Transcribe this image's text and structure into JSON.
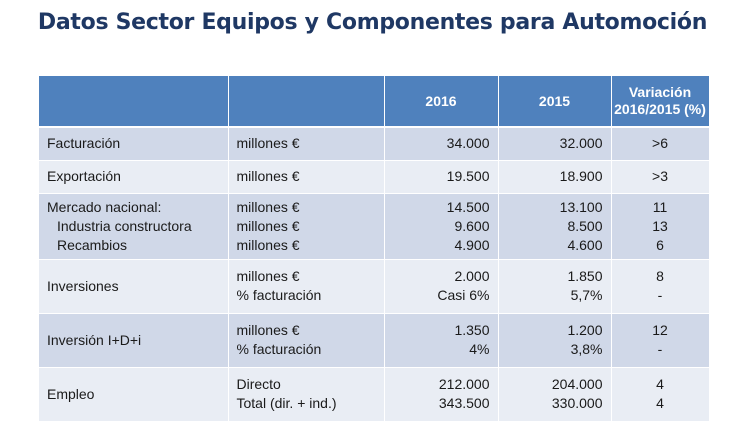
{
  "title": "Datos Sector Equipos y Componentes para Automoción",
  "header": {
    "col_label": "",
    "col_unit": "",
    "col_2016": "2016",
    "col_2015": "2015",
    "col_var_line1": "Variación",
    "col_var_line2": "2016/2015 (%)"
  },
  "rows": [
    {
      "label": [
        "Facturación"
      ],
      "unit": [
        "millones €"
      ],
      "y2016": [
        "34.000"
      ],
      "y2015": [
        "32.000"
      ],
      "var": [
        ">6"
      ]
    },
    {
      "label": [
        "Exportación"
      ],
      "unit": [
        "millones €"
      ],
      "y2016": [
        "19.500"
      ],
      "y2015": [
        "18.900"
      ],
      "var": [
        ">3"
      ]
    },
    {
      "label": [
        "Mercado nacional:",
        "Industria constructora",
        "Recambios"
      ],
      "unit": [
        "millones €",
        "millones €",
        "millones €"
      ],
      "y2016": [
        "14.500",
        "9.600",
        "4.900"
      ],
      "y2015": [
        "13.100",
        "8.500",
        "4.600"
      ],
      "var": [
        "11",
        "13",
        "6"
      ]
    },
    {
      "label": [
        "Inversiones"
      ],
      "unit": [
        "millones €",
        "% facturación"
      ],
      "y2016": [
        "2.000",
        "Casi 6%"
      ],
      "y2015": [
        "1.850",
        "5,7%"
      ],
      "var": [
        "8",
        "-"
      ]
    },
    {
      "label": [
        "Inversión I+D+i"
      ],
      "unit": [
        "millones €",
        "% facturación"
      ],
      "y2016": [
        "1.350",
        "4%"
      ],
      "y2015": [
        "1.200",
        "3,8%"
      ],
      "var": [
        "12",
        "-"
      ]
    },
    {
      "label": [
        "Empleo"
      ],
      "unit": [
        "Directo",
        "Total (dir. + ind.)"
      ],
      "y2016": [
        "212.000",
        "343.500"
      ],
      "y2015": [
        "204.000",
        "330.000"
      ],
      "var": [
        "4",
        "4"
      ]
    }
  ]
}
